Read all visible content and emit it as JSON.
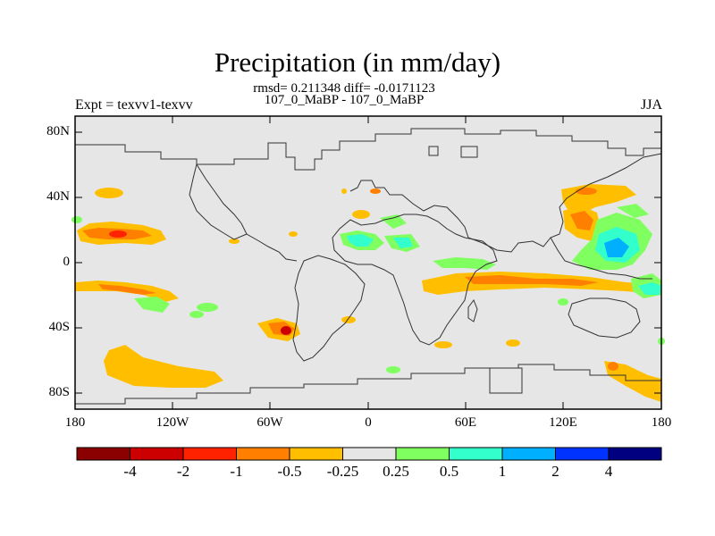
{
  "header": {
    "title": "Precipitation (in mm/day)",
    "subtitle_line1": "rmsd= 0.211348 diff= -0.0171123",
    "subtitle_line2": "107_0_MaBP - 107_0_MaBP",
    "experiment": "Expt = texvv1-texvv",
    "season": "JJA"
  },
  "axes": {
    "lat_labels": [
      "80N",
      "40N",
      "0",
      "40S",
      "80S"
    ],
    "lon_labels": [
      "180",
      "120W",
      "60W",
      "0",
      "60E",
      "120E",
      "180"
    ]
  },
  "colorbar": {
    "labels": [
      "-4",
      "-2",
      "-1",
      "-0.5",
      "-0.25",
      "0.25",
      "0.5",
      "1",
      "2",
      "4"
    ],
    "colors": [
      "#8b0000",
      "#cc0000",
      "#ff2200",
      "#ff7f00",
      "#ffbf00",
      "#e6e6e6",
      "#80ff60",
      "#33ffcc",
      "#00b0ff",
      "#0033ff",
      "#000080"
    ]
  },
  "map_colors": {
    "background": "#e6e6e6",
    "coastline": "#333333"
  }
}
